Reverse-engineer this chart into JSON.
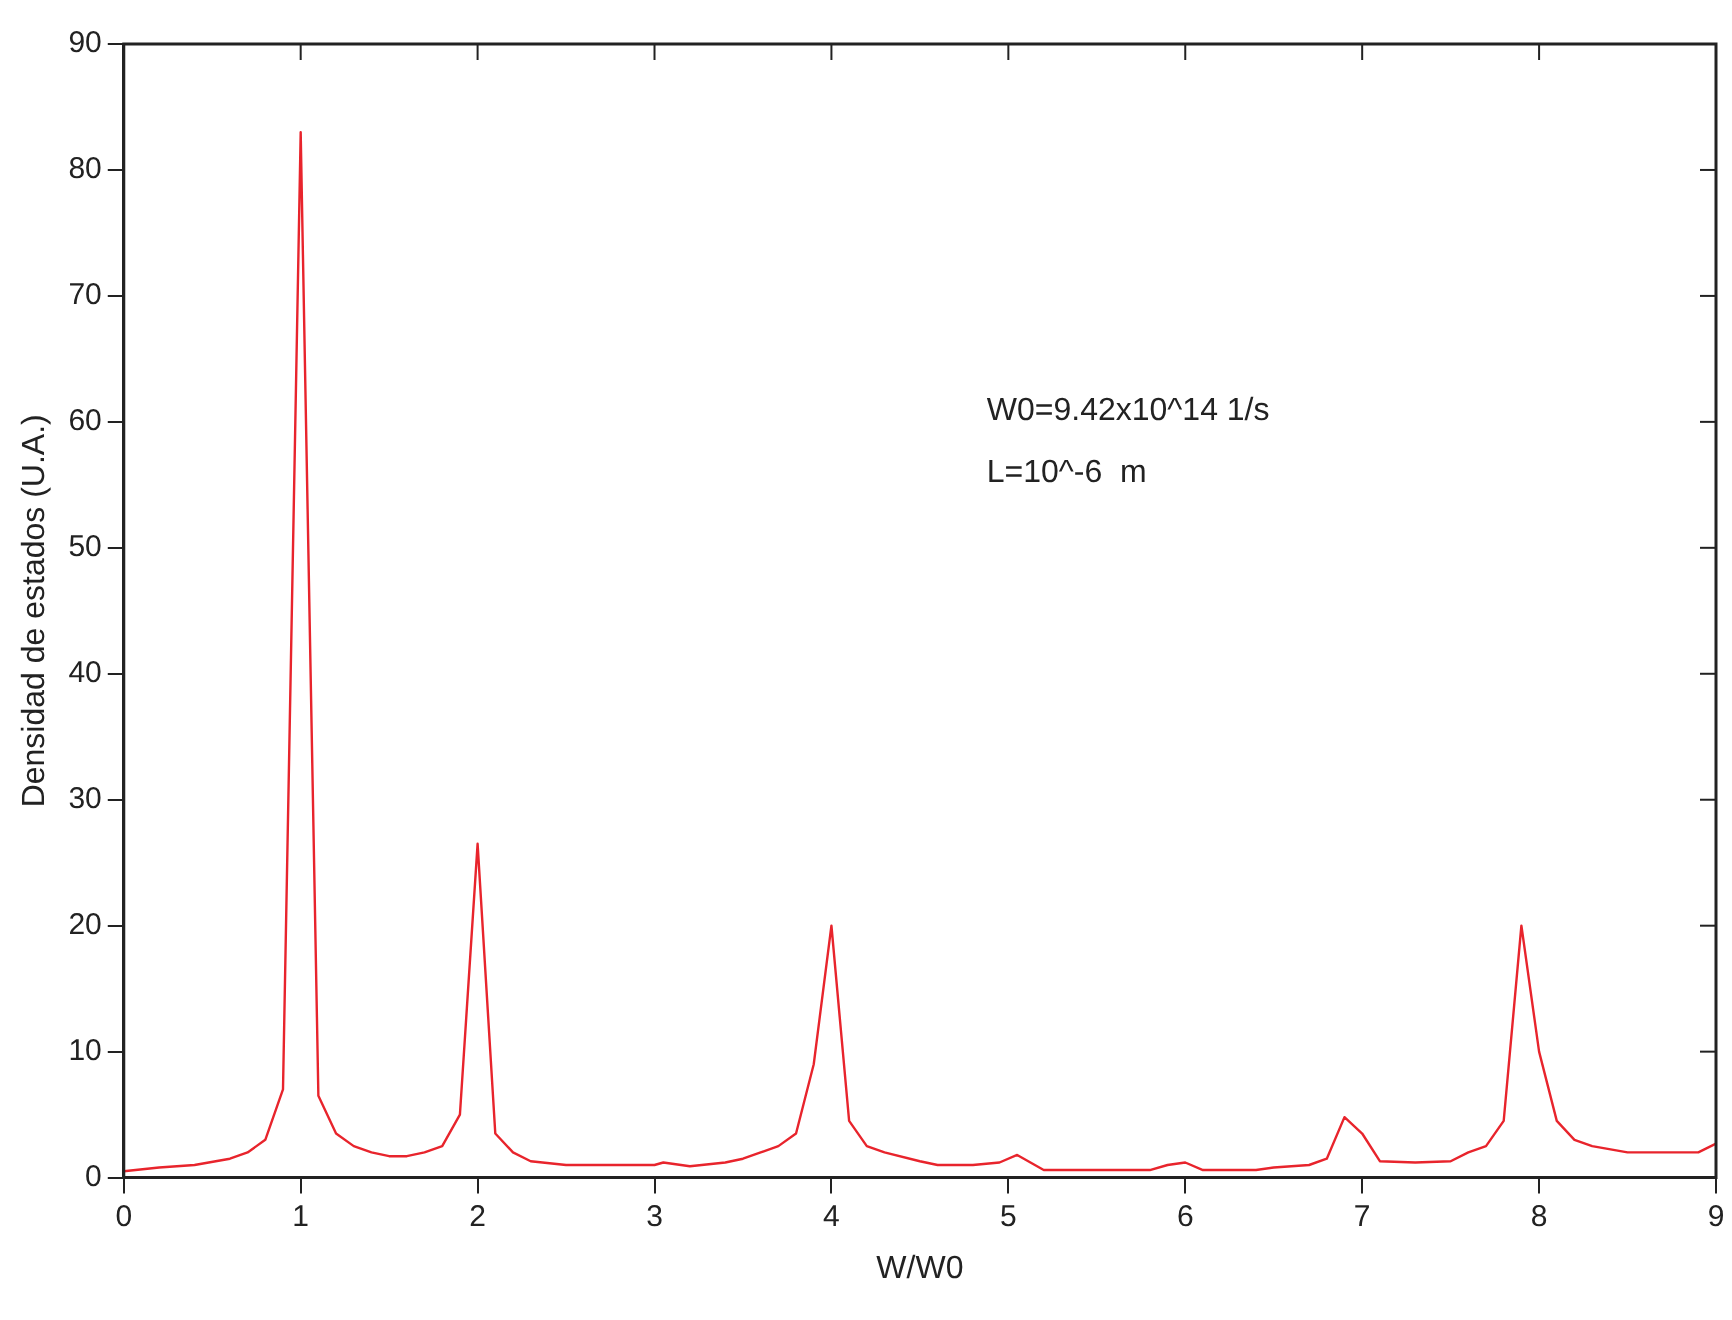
{
  "chart_data": {
    "type": "line",
    "xlabel": "W/W0",
    "ylabel": "Densidad de estados (U.A.)",
    "annotations": [
      "W0=9.42x10^14 1/s",
      "L=10^-6  m"
    ],
    "x": [
      0,
      0.2,
      0.4,
      0.6,
      0.7,
      0.8,
      0.9,
      1.0,
      1.1,
      1.2,
      1.3,
      1.4,
      1.5,
      1.6,
      1.7,
      1.8,
      1.9,
      2.0,
      2.1,
      2.2,
      2.3,
      2.5,
      3.0,
      3.05,
      3.2,
      3.4,
      3.5,
      3.6,
      3.7,
      3.8,
      3.9,
      4.0,
      4.1,
      4.2,
      4.3,
      4.5,
      4.6,
      4.8,
      4.95,
      5.05,
      5.2,
      5.5,
      5.8,
      5.9,
      6.0,
      6.1,
      6.4,
      6.5,
      6.7,
      6.8,
      6.9,
      7.0,
      7.1,
      7.3,
      7.5,
      7.6,
      7.7,
      7.8,
      7.9,
      8.0,
      8.1,
      8.2,
      8.3,
      8.5,
      8.9,
      9.0
    ],
    "series": [
      {
        "color": "#e8242c",
        "values": [
          0.5,
          0.8,
          1.0,
          1.5,
          2,
          3,
          7,
          83,
          6.5,
          3.5,
          2.5,
          2,
          1.7,
          1.7,
          2,
          2.5,
          5,
          26.5,
          3.5,
          2,
          1.3,
          1,
          1,
          1.2,
          0.9,
          1.2,
          1.5,
          2,
          2.5,
          3.5,
          9,
          20,
          4.5,
          2.5,
          2,
          1.3,
          1,
          1,
          1.2,
          1.8,
          0.6,
          0.6,
          0.6,
          1.0,
          1.2,
          0.6,
          0.6,
          0.8,
          1.0,
          1.5,
          4.8,
          3.5,
          1.3,
          1.2,
          1.3,
          2,
          2.5,
          4.5,
          20,
          10,
          4.5,
          3,
          2.5,
          2,
          2,
          2.7
        ]
      }
    ],
    "xlim": [
      0,
      9
    ],
    "xticks": [
      0,
      1,
      2,
      3,
      4,
      5,
      6,
      7,
      8,
      9
    ],
    "ylim": [
      0,
      90
    ],
    "yticks": [
      0,
      10,
      20,
      30,
      40,
      50,
      60,
      70,
      80,
      90
    ],
    "grid": false,
    "legend": false,
    "marker": "none",
    "line_style": "solid"
  }
}
